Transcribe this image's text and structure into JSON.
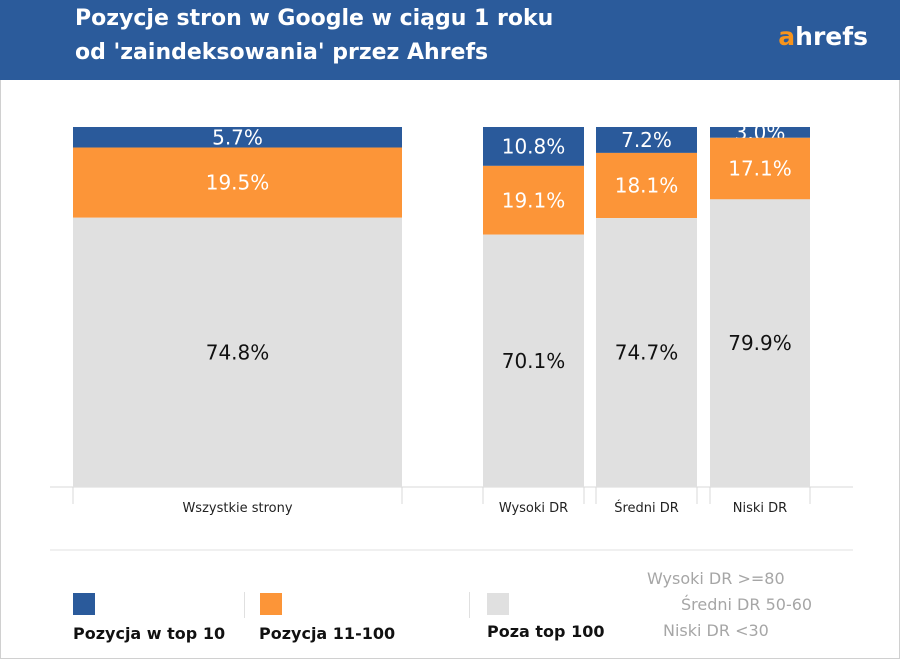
{
  "header": {
    "title_line1": "Pozycje stron w Google w ciągu 1 roku",
    "title_line2": "od 'zaindeksowania' przez Ahrefs",
    "logo_a": "a",
    "logo_rest": "hrefs"
  },
  "colors": {
    "header_bg": "#2b5b9b",
    "top10": "#2a5a9b",
    "pos11_100": "#fc9538",
    "beyond100": "#e0e0e0",
    "logo_accent": "#f7941d"
  },
  "chart_data": {
    "type": "bar",
    "stacked": true,
    "normalized": true,
    "categories": [
      "Wszystkie strony",
      "Wysoki DR",
      "Średni DR",
      "Niski DR"
    ],
    "series": [
      {
        "name": "Pozycja w top 10",
        "values": [
          5.7,
          10.8,
          7.2,
          3.0
        ],
        "labels": [
          "5.7%",
          "10.8%",
          "7.2%",
          "3.0%"
        ]
      },
      {
        "name": "Pozycja 11-100",
        "values": [
          19.5,
          19.1,
          18.1,
          17.1
        ],
        "labels": [
          "19.5%",
          "19.1%",
          "18.1%",
          "17.1%"
        ]
      },
      {
        "name": "Poza top 100",
        "values": [
          74.8,
          70.1,
          74.7,
          79.9
        ],
        "labels": [
          "74.8%",
          "70.1%",
          "74.7%",
          "79.9%"
        ]
      }
    ],
    "ylim": [
      0,
      100
    ],
    "grid": false,
    "legend_position": "bottom"
  },
  "legend": {
    "items": [
      "Pozycja w top 10",
      "Pozycja 11-100",
      "Poza top 100"
    ]
  },
  "dr_notes": [
    "Wysoki DR >=80",
    "Średni DR 50-60",
    "Niski DR <30"
  ]
}
